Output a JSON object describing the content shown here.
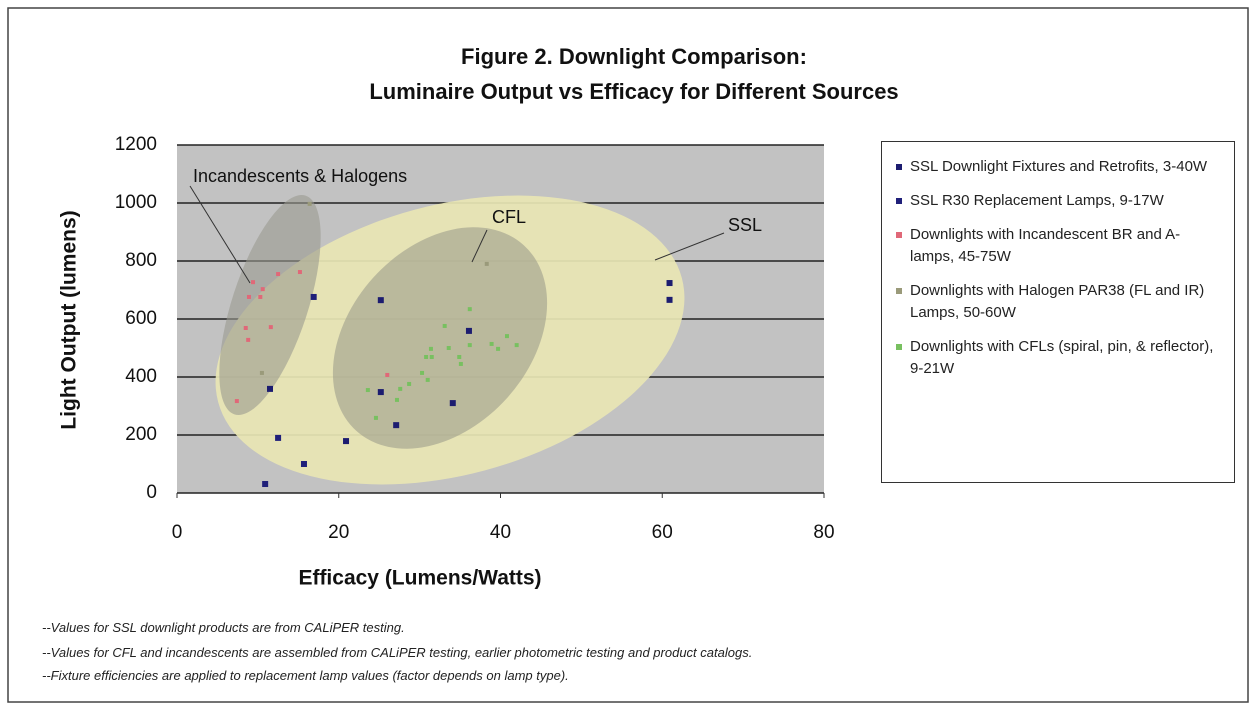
{
  "chart_data": {
    "type": "scatter",
    "title": "Figure 2. Downlight Comparison:",
    "subtitle": "Luminaire Output vs Efficacy for Different Sources",
    "x_label": "Efficacy (Lumens/Watts)",
    "y_label": "Light Output (lumens)",
    "xlim": [
      0,
      80
    ],
    "xticks": [
      0,
      20,
      40,
      60,
      80
    ],
    "ylim": [
      0,
      1200
    ],
    "yticks": [
      0,
      200,
      400,
      600,
      800,
      1000,
      1200
    ],
    "grid": true,
    "annotations": [
      "Incandescents & Halogens",
      "CFL",
      "SSL"
    ],
    "series": [
      {
        "name": "SSL Downlight Fixtures and Retrofits, 3-40W",
        "color": "#1c1c70",
        "x": [
          25.2,
          60.9,
          60.9,
          36.1,
          11.5,
          25.2,
          34.1,
          20.9,
          27.1
        ],
        "values": [
          665,
          724,
          666,
          559,
          359,
          348,
          310,
          179,
          234
        ]
      },
      {
        "name": "SSL R30 Replacement Lamps, 9-17W",
        "color": "#20207a",
        "x": [
          16.9,
          12.5,
          15.7,
          10.9
        ],
        "values": [
          676,
          190,
          100,
          31
        ]
      },
      {
        "name": "Downlights with Incandescent BR and A-lamps, 45-75W",
        "color": "#e06878",
        "x": [
          9.4,
          10.6,
          10.3,
          8.9,
          12.5,
          15.2,
          8.5,
          8.8,
          11.6,
          7.4,
          26.0
        ],
        "values": [
          727,
          703,
          676,
          676,
          755,
          762,
          569,
          528,
          572,
          317,
          407
        ]
      },
      {
        "name": "Downlights with Halogen PAR38 (FL and IR) Lamps, 50-60W",
        "color": "#9a9a7a",
        "x": [
          16.4,
          38.3,
          10.5
        ],
        "values": [
          997,
          790,
          414
        ]
      },
      {
        "name": "Downlights with CFLs (spiral, pin, & reflector), 9-21W",
        "color": "#78c060",
        "x": [
          33.1,
          36.2,
          31.4,
          30.8,
          31.5,
          33.6,
          34.9,
          35.1,
          36.2,
          38.9,
          39.7,
          40.8,
          42.0,
          30.3,
          31.0,
          28.7,
          27.6,
          23.6,
          24.6,
          27.2
        ],
        "values": [
          576,
          634,
          497,
          469,
          469,
          500,
          469,
          445,
          510,
          514,
          497,
          541,
          510,
          414,
          390,
          376,
          359,
          355,
          259,
          321
        ]
      }
    ]
  },
  "notes": [
    "--Values for SSL downlight products are from CALiPER testing.",
    "--Values for CFL and incandescents are assembled from CALiPER testing, earlier photometric testing and product catalogs.",
    "--Fixture efficiencies are applied to replacement lamp values (factor depends on lamp type)."
  ]
}
